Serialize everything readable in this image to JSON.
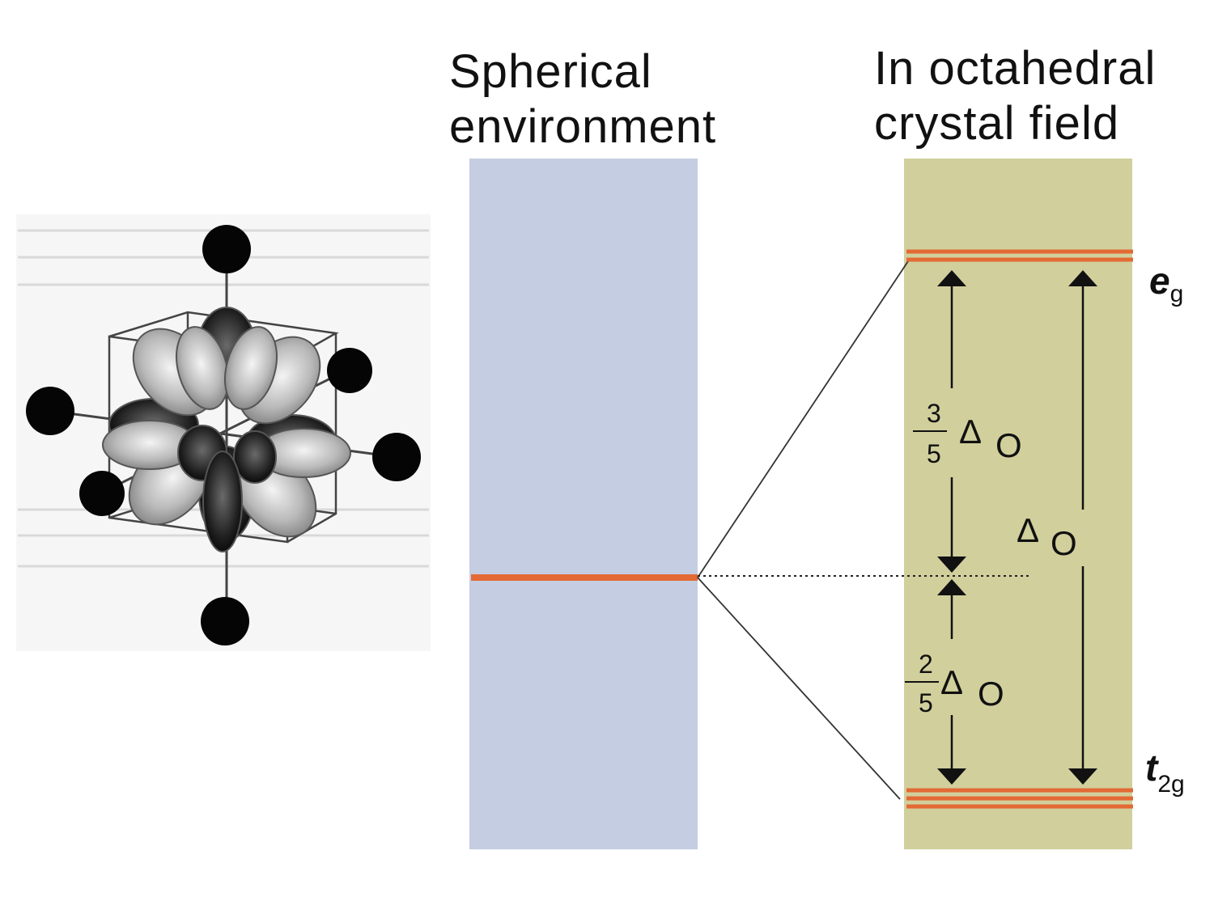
{
  "headings": {
    "spherical_line1": "Spherical",
    "spherical_line2": "environment",
    "octahedral_line1": "In octahedral",
    "octahedral_line2": "crystal field"
  },
  "levels": {
    "eg": {
      "main": "e",
      "subscript": "g"
    },
    "t2g": {
      "main": "t",
      "subscript": "2g"
    }
  },
  "splitting": {
    "upper_numerator": "3",
    "upper_denominator": "5",
    "lower_numerator": "2",
    "lower_denominator": "5",
    "delta_symbol": "Δ",
    "delta_subscript": "O"
  },
  "colors": {
    "spherical_fill": "#c5cde2",
    "octahedral_fill": "#d1cf9c",
    "level_line": "#e36a35",
    "arrow": "#111111"
  }
}
